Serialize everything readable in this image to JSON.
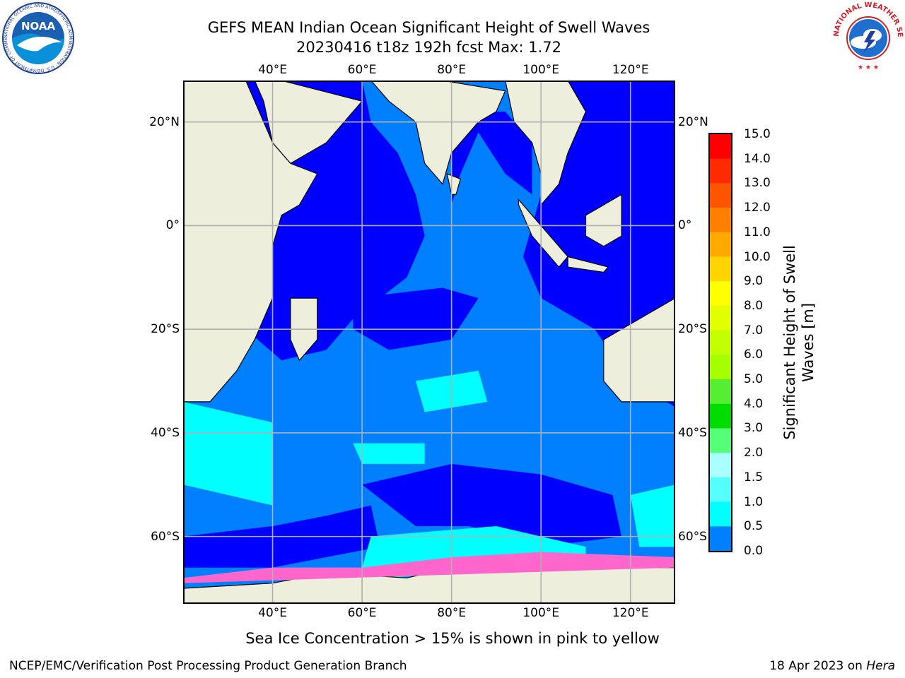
{
  "title": {
    "line1": "GEFS MEAN Indian Ocean Significant Height of Swell Waves",
    "line2": "20230416 t18z 192h fcst   Max: 1.72"
  },
  "map": {
    "lon_range": [
      20,
      130
    ],
    "lat_range": [
      -73,
      28
    ],
    "lon_ticks": [
      "40°E",
      "60°E",
      "80°E",
      "100°E",
      "120°E"
    ],
    "lat_ticks_left": [
      "20°N",
      "0°",
      "20°S",
      "40°S",
      "60°S"
    ],
    "lat_ticks_right": [
      "20°N",
      "0°",
      "20°S",
      "40°S",
      "60°S"
    ],
    "colors": {
      "land": "#eeeedd",
      "ocean_low": "#0000ff",
      "ocean_mid": "#0080ff",
      "ocean_high": "#00ffff",
      "ice": "#ff66cc"
    }
  },
  "colorbar": {
    "labels": [
      "15.0",
      "14.0",
      "13.0",
      "12.0",
      "11.0",
      "10.0",
      "9.0",
      "8.0",
      "7.0",
      "6.0",
      "5.0",
      "4.0",
      "3.0",
      "2.0",
      "1.5",
      "1.0",
      "0.5",
      "0.0"
    ],
    "colors_top_to_bottom": [
      "#ff0000",
      "#ff2a00",
      "#ff5500",
      "#ff8000",
      "#ffaa00",
      "#ffd400",
      "#ffff00",
      "#e1ff00",
      "#c3ff00",
      "#a5ff00",
      "#55ee33",
      "#00dd00",
      "#55ff77",
      "#aaffff",
      "#55ffff",
      "#00ffff",
      "#0080ff",
      "#0000ff"
    ],
    "title_line1": "Significant Height of Swell",
    "title_line2": "Waves [m]"
  },
  "caption": "Sea Ice Concentration > 15% is shown in pink to yellow",
  "footer": {
    "left": "NCEP/EMC/Verification Post Processing Product Generation Branch",
    "right_date": "18 Apr 2023 on ",
    "right_machine": "Hera"
  },
  "logos": {
    "noaa_text": "NOAA",
    "noaa_ring": "NATIONAL OCEANIC AND ATMOSPHERIC ADMINISTRATION · U.S. DEPARTMENT OF COMMERCE",
    "nws_ring": "NATIONAL WEATHER SERVICE"
  }
}
